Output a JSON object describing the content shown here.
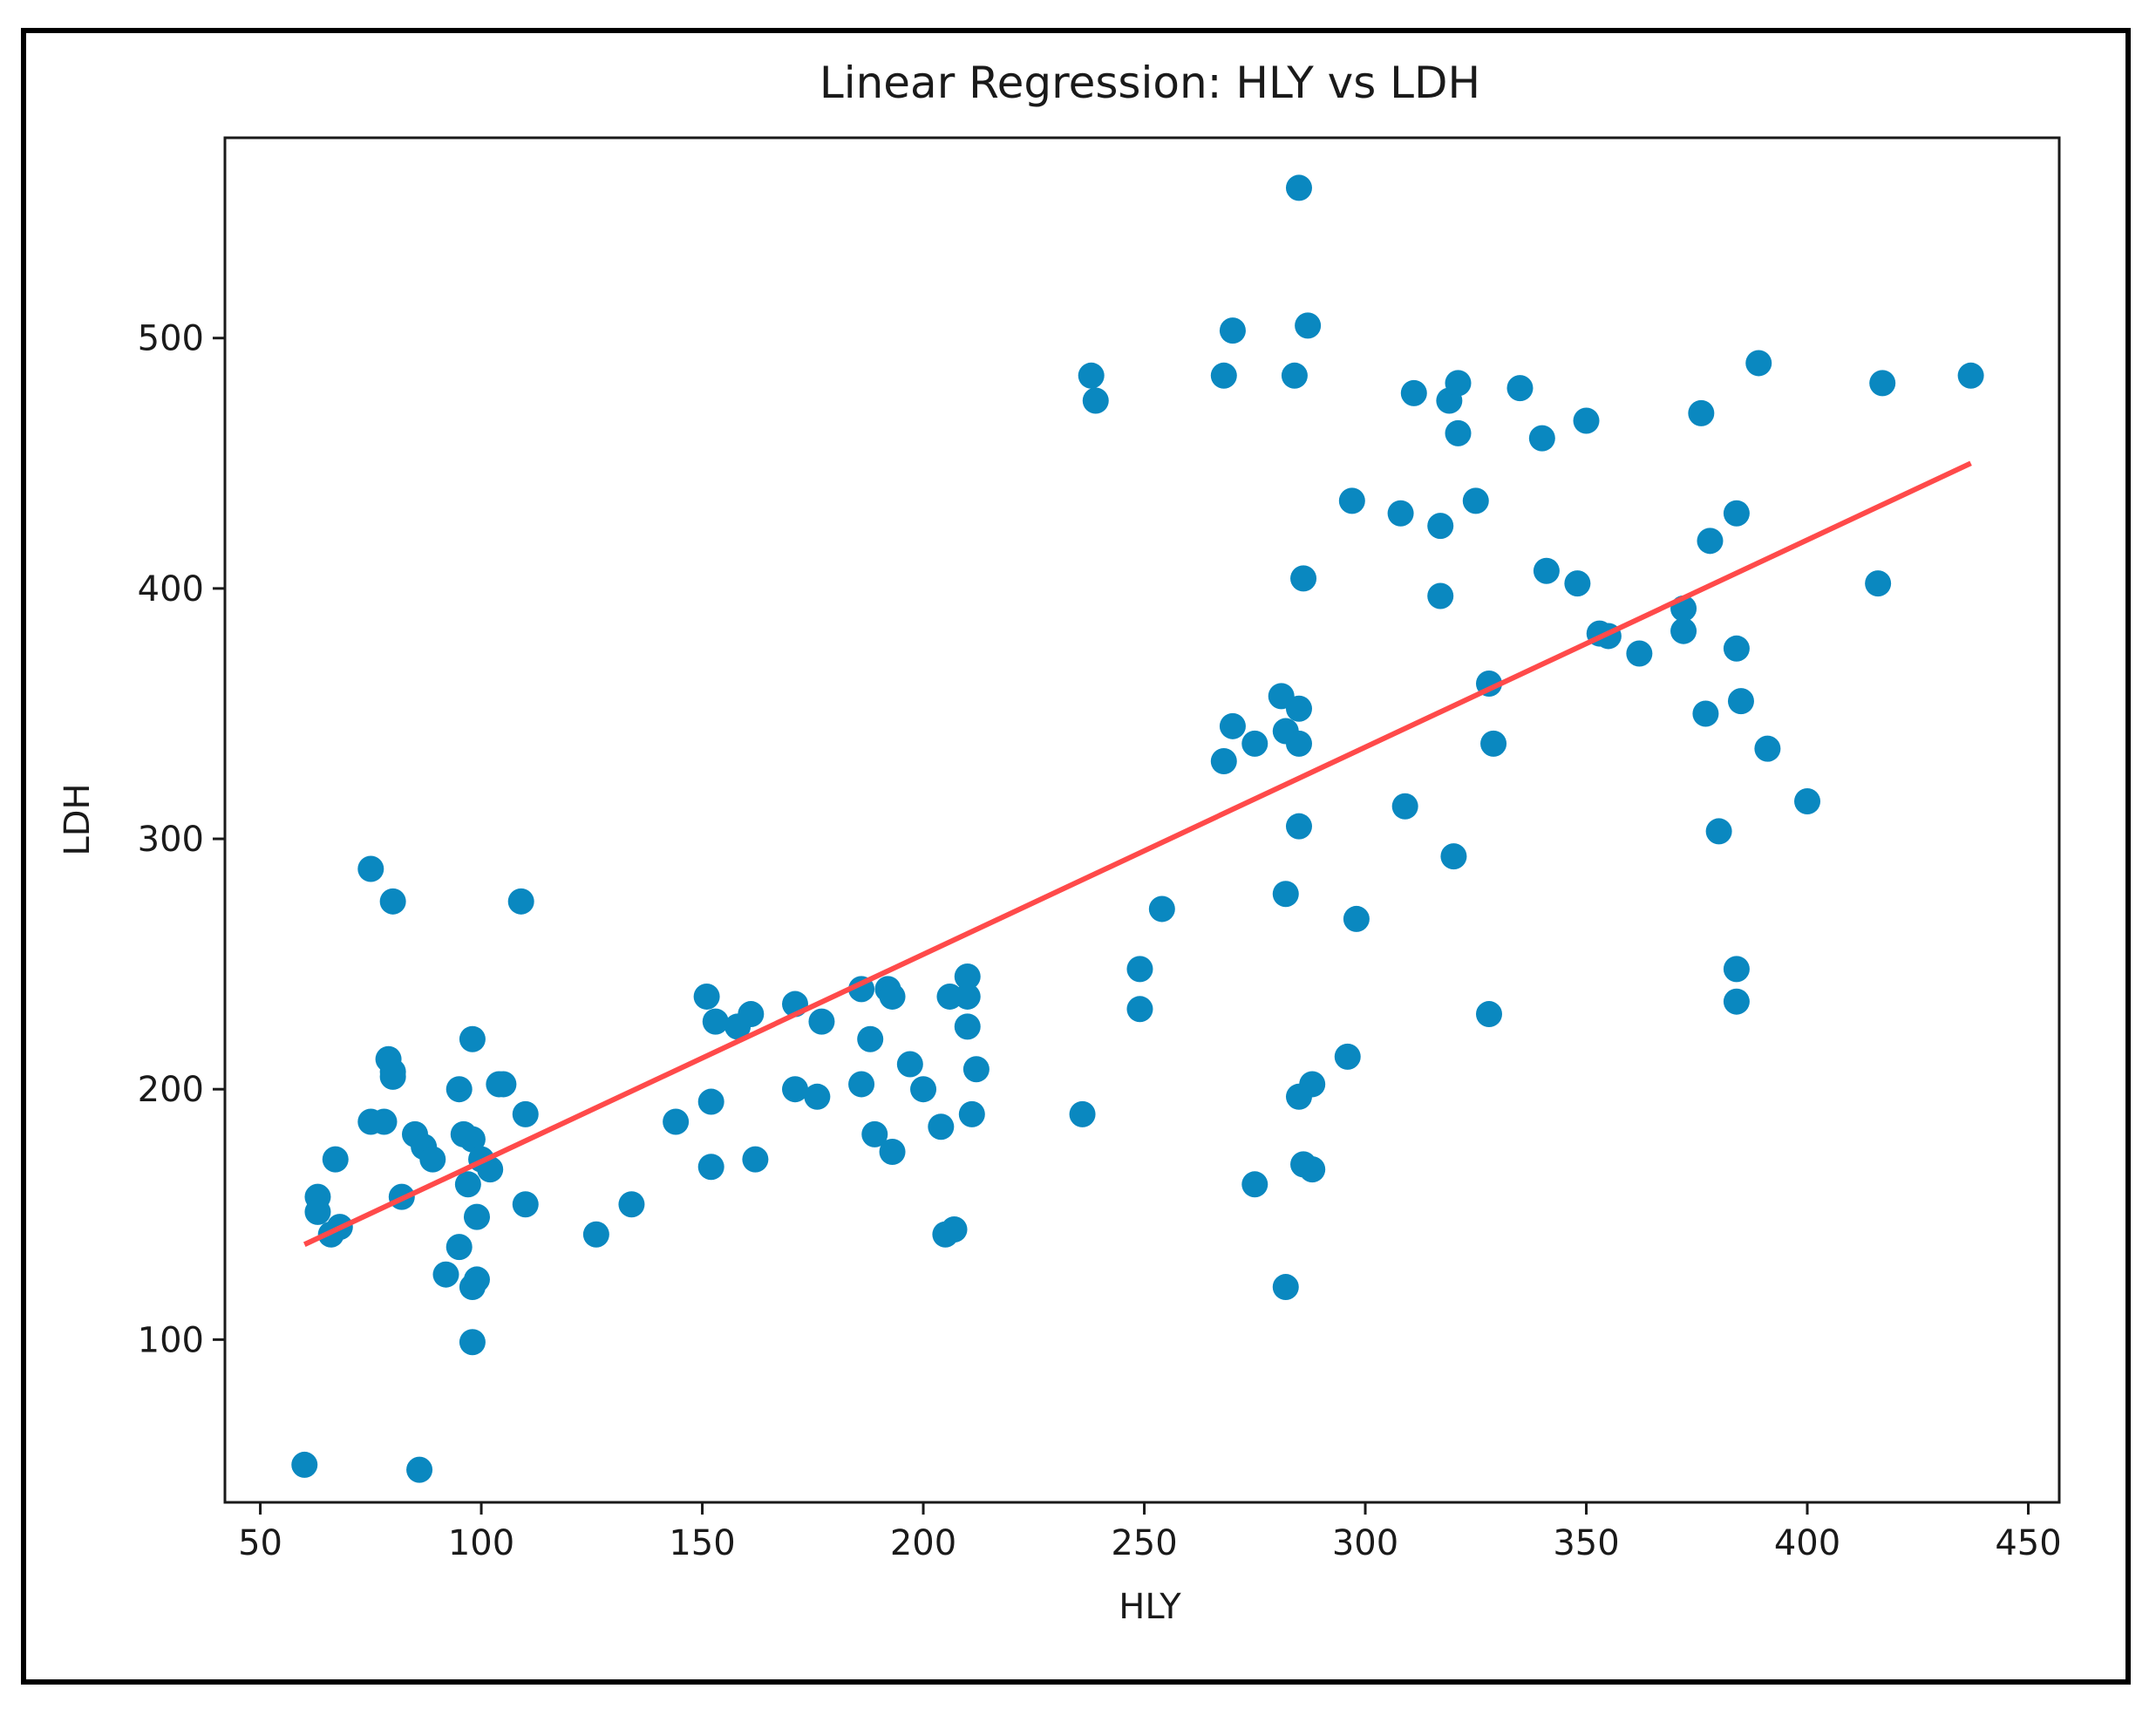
{
  "chart_data": {
    "type": "scatter",
    "title": "Linear Regression: HLY vs LDH",
    "xlabel": "HLY",
    "ylabel": "LDH",
    "xlim": [
      42,
      457
    ],
    "ylim": [
      35,
      580
    ],
    "xticks": [
      50,
      100,
      150,
      200,
      250,
      300,
      350,
      400,
      450
    ],
    "yticks": [
      100,
      200,
      300,
      400,
      500
    ],
    "grid": false,
    "colors": {
      "points": "#0a88c0",
      "line": "#ff4a4a"
    },
    "series": [
      {
        "name": "data",
        "points": [
          [
            60,
            50
          ],
          [
            86,
            48
          ],
          [
            63,
            157
          ],
          [
            63,
            151
          ],
          [
            66,
            142
          ],
          [
            67,
            172
          ],
          [
            68,
            145
          ],
          [
            75,
            288
          ],
          [
            75,
            187
          ],
          [
            78,
            187
          ],
          [
            79,
            212
          ],
          [
            80,
            207
          ],
          [
            80,
            275
          ],
          [
            80,
            205
          ],
          [
            82,
            157
          ],
          [
            85,
            182
          ],
          [
            87,
            177
          ],
          [
            89,
            172
          ],
          [
            92,
            126
          ],
          [
            95,
            200
          ],
          [
            95,
            137
          ],
          [
            96,
            182
          ],
          [
            97,
            162
          ],
          [
            98,
            180
          ],
          [
            98,
            220
          ],
          [
            98,
            121
          ],
          [
            99,
            149
          ],
          [
            99,
            124
          ],
          [
            98,
            99
          ],
          [
            100,
            172
          ],
          [
            102,
            168
          ],
          [
            104,
            202
          ],
          [
            105,
            202
          ],
          [
            109,
            275
          ],
          [
            110,
            190
          ],
          [
            110,
            154
          ],
          [
            126,
            142
          ],
          [
            134,
            154
          ],
          [
            144,
            187
          ],
          [
            151,
            237
          ],
          [
            152,
            195
          ],
          [
            152,
            169
          ],
          [
            153,
            227
          ],
          [
            158,
            225
          ],
          [
            161,
            230
          ],
          [
            162,
            172
          ],
          [
            171,
            234
          ],
          [
            171,
            200
          ],
          [
            176,
            197
          ],
          [
            177,
            227
          ],
          [
            186,
            240
          ],
          [
            186,
            202
          ],
          [
            188,
            220
          ],
          [
            189,
            182
          ],
          [
            192,
            240
          ],
          [
            193,
            237
          ],
          [
            193,
            175
          ],
          [
            197,
            210
          ],
          [
            200,
            200
          ],
          [
            204,
            185
          ],
          [
            205,
            142
          ],
          [
            206,
            237
          ],
          [
            207,
            144
          ],
          [
            210,
            245
          ],
          [
            210,
            237
          ],
          [
            210,
            225
          ],
          [
            211,
            190
          ],
          [
            212,
            208
          ],
          [
            236,
            190
          ],
          [
            238,
            485
          ],
          [
            239,
            475
          ],
          [
            249,
            248
          ],
          [
            249,
            232
          ],
          [
            254,
            272
          ],
          [
            268,
            485
          ],
          [
            268,
            331
          ],
          [
            270,
            345
          ],
          [
            270,
            503
          ],
          [
            275,
            338
          ],
          [
            275,
            162
          ],
          [
            281,
            357
          ],
          [
            282,
            343
          ],
          [
            282,
            278
          ],
          [
            282,
            121
          ],
          [
            284,
            485
          ],
          [
            285,
            352
          ],
          [
            285,
            338
          ],
          [
            285,
            305
          ],
          [
            285,
            197
          ],
          [
            285,
            560
          ],
          [
            286,
            404
          ],
          [
            286,
            170
          ],
          [
            287,
            505
          ],
          [
            288,
            202
          ],
          [
            288,
            168
          ],
          [
            296,
            213
          ],
          [
            297,
            435
          ],
          [
            298,
            268
          ],
          [
            308,
            430
          ],
          [
            309,
            313
          ],
          [
            311,
            478
          ],
          [
            317,
            425
          ],
          [
            317,
            397
          ],
          [
            319,
            475
          ],
          [
            320,
            293
          ],
          [
            321,
            482
          ],
          [
            321,
            462
          ],
          [
            325,
            435
          ],
          [
            328,
            362
          ],
          [
            328,
            230
          ],
          [
            329,
            338
          ],
          [
            335,
            480
          ],
          [
            340,
            460
          ],
          [
            341,
            407
          ],
          [
            348,
            402
          ],
          [
            350,
            467
          ],
          [
            353,
            382
          ],
          [
            355,
            381
          ],
          [
            362,
            374
          ],
          [
            372,
            392
          ],
          [
            372,
            383
          ],
          [
            376,
            470
          ],
          [
            377,
            350
          ],
          [
            378,
            419
          ],
          [
            380,
            303
          ],
          [
            384,
            376
          ],
          [
            384,
            430
          ],
          [
            384,
            248
          ],
          [
            384,
            235
          ],
          [
            385,
            355
          ],
          [
            389,
            490
          ],
          [
            391,
            336
          ],
          [
            400,
            315
          ],
          [
            416,
            402
          ],
          [
            417,
            482
          ],
          [
            437,
            485
          ]
        ]
      }
    ],
    "regression_line": {
      "x": [
        60,
        437
      ],
      "y": [
        138,
        450
      ]
    }
  }
}
